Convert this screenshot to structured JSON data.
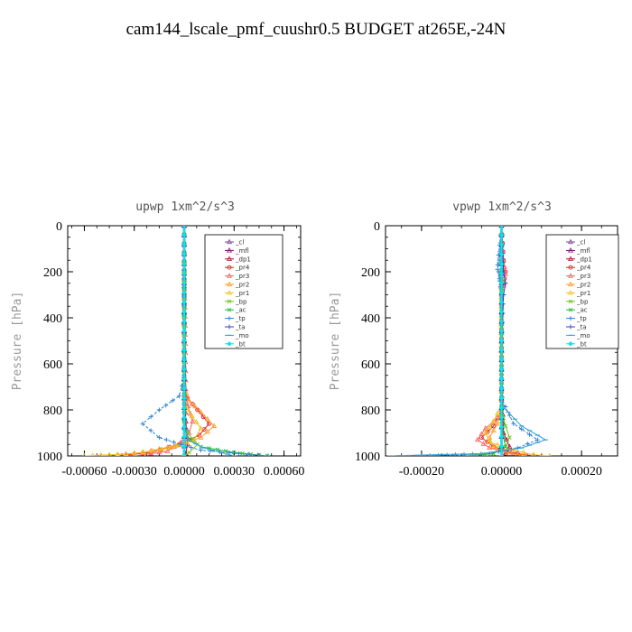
{
  "title": "cam144_lscale_pmf_cuushr0.5  BUDGET at265E,-24N",
  "chart_data": [
    {
      "type": "line",
      "title": "upwp   1xm^2/s^3",
      "ylabel": "Pressure  [hPa]",
      "xlim": [
        -0.0007,
        0.0007
      ],
      "ylim": [
        1000,
        0
      ],
      "xticks": [
        -0.0006,
        -0.0003,
        0,
        0.0003,
        0.0006
      ],
      "xtick_labels": [
        "-0.00060",
        "-0.00030",
        "0.00000",
        "0.00030",
        "0.00060"
      ],
      "yticks": [
        0,
        200,
        400,
        600,
        800,
        1000
      ],
      "ytick_labels": [
        "0",
        "200",
        "400",
        "600",
        "800",
        "1000"
      ],
      "legend": "top-right",
      "series": [
        {
          "name": "_cl",
          "color": "#7a4a9a",
          "x": [
            0,
            0,
            0,
            0,
            0
          ],
          "y": [
            0,
            250,
            500,
            750,
            1000
          ]
        },
        {
          "name": "_mfl",
          "color": "#7a0a7a",
          "x": [
            0,
            0,
            0,
            0,
            0
          ],
          "y": [
            0,
            250,
            500,
            750,
            1000
          ]
        },
        {
          "name": "_dp1",
          "color": "#b01030",
          "x": [
            0,
            0,
            0,
            1e-05,
            2e-05,
            1e-05,
            0
          ],
          "y": [
            0,
            300,
            700,
            850,
            950,
            990,
            1000
          ]
        },
        {
          "name": "_pr4",
          "color": "#e02020",
          "x": [
            0,
            0,
            2e-05,
            8e-05,
            0.00015,
            9e-05,
            -3e-05,
            -0.0002,
            -0.0004
          ],
          "y": [
            0,
            700,
            750,
            800,
            860,
            910,
            950,
            985,
            1000
          ]
        },
        {
          "name": "_pr3",
          "color": "#ff6060",
          "x": [
            0,
            1e-05,
            5e-05,
            3e-05,
            -2e-05,
            -0.0001,
            -0.0003
          ],
          "y": [
            0,
            750,
            850,
            900,
            940,
            980,
            1000
          ]
        },
        {
          "name": "_pr2",
          "color": "#ff9930",
          "x": [
            0,
            0,
            3e-05,
            0.0001,
            0.00018,
            0.0001,
            -5e-05,
            -0.00025,
            -0.0005
          ],
          "y": [
            0,
            700,
            760,
            810,
            870,
            920,
            955,
            985,
            1000
          ]
        },
        {
          "name": "_pr1",
          "color": "#f0c020",
          "x": [
            0,
            0,
            2e-05,
            0.0001,
            6e-05,
            -8e-05,
            -0.0003,
            -0.0006
          ],
          "y": [
            0,
            750,
            800,
            880,
            930,
            965,
            990,
            1000
          ]
        },
        {
          "name": "_bp",
          "color": "#70c020",
          "x": [
            0,
            0,
            2e-05,
            8e-05,
            3e-05,
            0
          ],
          "y": [
            0,
            850,
            900,
            950,
            985,
            1000
          ]
        },
        {
          "name": "_ac",
          "color": "#20c040",
          "x": [
            0,
            0,
            3e-05,
            0.0001,
            0.0003,
            0.0005
          ],
          "y": [
            0,
            880,
            930,
            960,
            985,
            1000
          ]
        },
        {
          "name": "_tp",
          "color": "#2a7fcf",
          "x": [
            0,
            0,
            -3e-05,
            -0.00015,
            -0.00025,
            -0.00015,
            -2e-05,
            0.0001,
            0.0005
          ],
          "y": [
            0,
            650,
            740,
            800,
            860,
            920,
            950,
            975,
            1000
          ]
        },
        {
          "name": "_ta",
          "color": "#3a3ad0",
          "x": [
            0,
            0,
            0,
            0,
            0
          ],
          "y": [
            0,
            250,
            500,
            750,
            1000
          ]
        },
        {
          "name": "_mo",
          "color": "#3aa0d8",
          "x": [
            0,
            0,
            2e-05,
            0.00012,
            0.00022,
            0.0003
          ],
          "y": [
            0,
            850,
            930,
            965,
            985,
            1000
          ]
        },
        {
          "name": "_bt",
          "color": "#00e8e8",
          "x": [
            0,
            0,
            0,
            0,
            0
          ],
          "y": [
            0,
            250,
            500,
            750,
            1000
          ]
        }
      ]
    },
    {
      "type": "line",
      "title": "vpwp   1xm^2/s^3",
      "ylabel": "Pressure  [hPa]",
      "xlim": [
        -0.00029,
        0.00029
      ],
      "ylim": [
        1000,
        0
      ],
      "xticks": [
        -0.0002,
        0,
        0.0002
      ],
      "xtick_labels": [
        "-0.00020",
        "0.00000",
        "0.00020"
      ],
      "yticks": [
        0,
        200,
        400,
        600,
        800,
        1000
      ],
      "ytick_labels": [
        "0",
        "200",
        "400",
        "600",
        "800",
        "1000"
      ],
      "legend": "top-right",
      "series": [
        {
          "name": "_cl",
          "color": "#7a4a9a",
          "x": [
            0,
            0,
            0,
            0,
            0
          ],
          "y": [
            0,
            250,
            500,
            750,
            1000
          ]
        },
        {
          "name": "_mfl",
          "color": "#7a0a7a",
          "x": [
            0,
            0,
            0,
            0,
            0
          ],
          "y": [
            0,
            250,
            500,
            750,
            1000
          ]
        },
        {
          "name": "_dp1",
          "color": "#b01030",
          "x": [
            0,
            0,
            5e-06,
            2e-05,
            1e-05,
            0
          ],
          "y": [
            0,
            700,
            900,
            960,
            990,
            1000
          ]
        },
        {
          "name": "_pr4",
          "color": "#e02020",
          "x": [
            0,
            5e-06,
            1e-05,
            5e-06,
            0,
            0,
            -2e-05,
            -5e-05,
            -2e-05,
            4e-05,
            8e-05
          ],
          "y": [
            0,
            150,
            200,
            260,
            300,
            800,
            870,
            920,
            960,
            990,
            1000
          ]
        },
        {
          "name": "_pr3",
          "color": "#ff6060",
          "x": [
            0,
            5e-06,
            1e-05,
            5e-06,
            0,
            0,
            -4e-05,
            -6e-05,
            -3e-05,
            3e-05,
            6e-05
          ],
          "y": [
            0,
            150,
            210,
            260,
            300,
            820,
            880,
            930,
            965,
            990,
            1000
          ]
        },
        {
          "name": "_pr2",
          "color": "#ff9930",
          "x": [
            0,
            0,
            -1e-05,
            -3e-05,
            -2e-05,
            2e-05,
            6e-05
          ],
          "y": [
            0,
            800,
            860,
            920,
            960,
            990,
            1000
          ]
        },
        {
          "name": "_pr1",
          "color": "#f0c020",
          "x": [
            0,
            0,
            -2e-05,
            -4e-05,
            -3e-05,
            3e-05,
            8e-05,
            0.00012
          ],
          "y": [
            0,
            780,
            850,
            900,
            940,
            975,
            995,
            1000
          ]
        },
        {
          "name": "_bp",
          "color": "#70c020",
          "x": [
            0,
            0,
            1e-05,
            2e-05,
            1e-05,
            -2e-05,
            -8e-05
          ],
          "y": [
            0,
            800,
            870,
            920,
            960,
            990,
            1000
          ]
        },
        {
          "name": "_ac",
          "color": "#20c040",
          "x": [
            0,
            0,
            5e-06,
            1e-05,
            -2e-05,
            -9e-05
          ],
          "y": [
            0,
            850,
            920,
            960,
            990,
            1000
          ]
        },
        {
          "name": "_tp",
          "color": "#2a7fcf",
          "x": [
            0,
            -1e-05,
            -5e-06,
            0,
            0,
            3e-05,
            9e-05,
            4e-05,
            -3e-05,
            -0.0002
          ],
          "y": [
            0,
            170,
            230,
            300,
            750,
            860,
            930,
            965,
            990,
            1000
          ]
        },
        {
          "name": "_ta",
          "color": "#3a3ad0",
          "x": [
            0,
            5e-06,
            1e-05,
            5e-06,
            0,
            0,
            0
          ],
          "y": [
            0,
            200,
            250,
            300,
            500,
            750,
            1000
          ]
        },
        {
          "name": "_mo",
          "color": "#3aa0d8",
          "x": [
            0,
            -5e-06,
            -1e-05,
            -5e-06,
            0,
            0,
            5e-05,
            0.00011,
            5e-05,
            -5e-05,
            -0.00028
          ],
          "y": [
            0,
            150,
            190,
            240,
            300,
            780,
            870,
            930,
            965,
            990,
            1000
          ]
        },
        {
          "name": "_bt",
          "color": "#00e8e8",
          "x": [
            0,
            0,
            0,
            0,
            0
          ],
          "y": [
            0,
            250,
            500,
            750,
            1000
          ]
        }
      ]
    }
  ]
}
